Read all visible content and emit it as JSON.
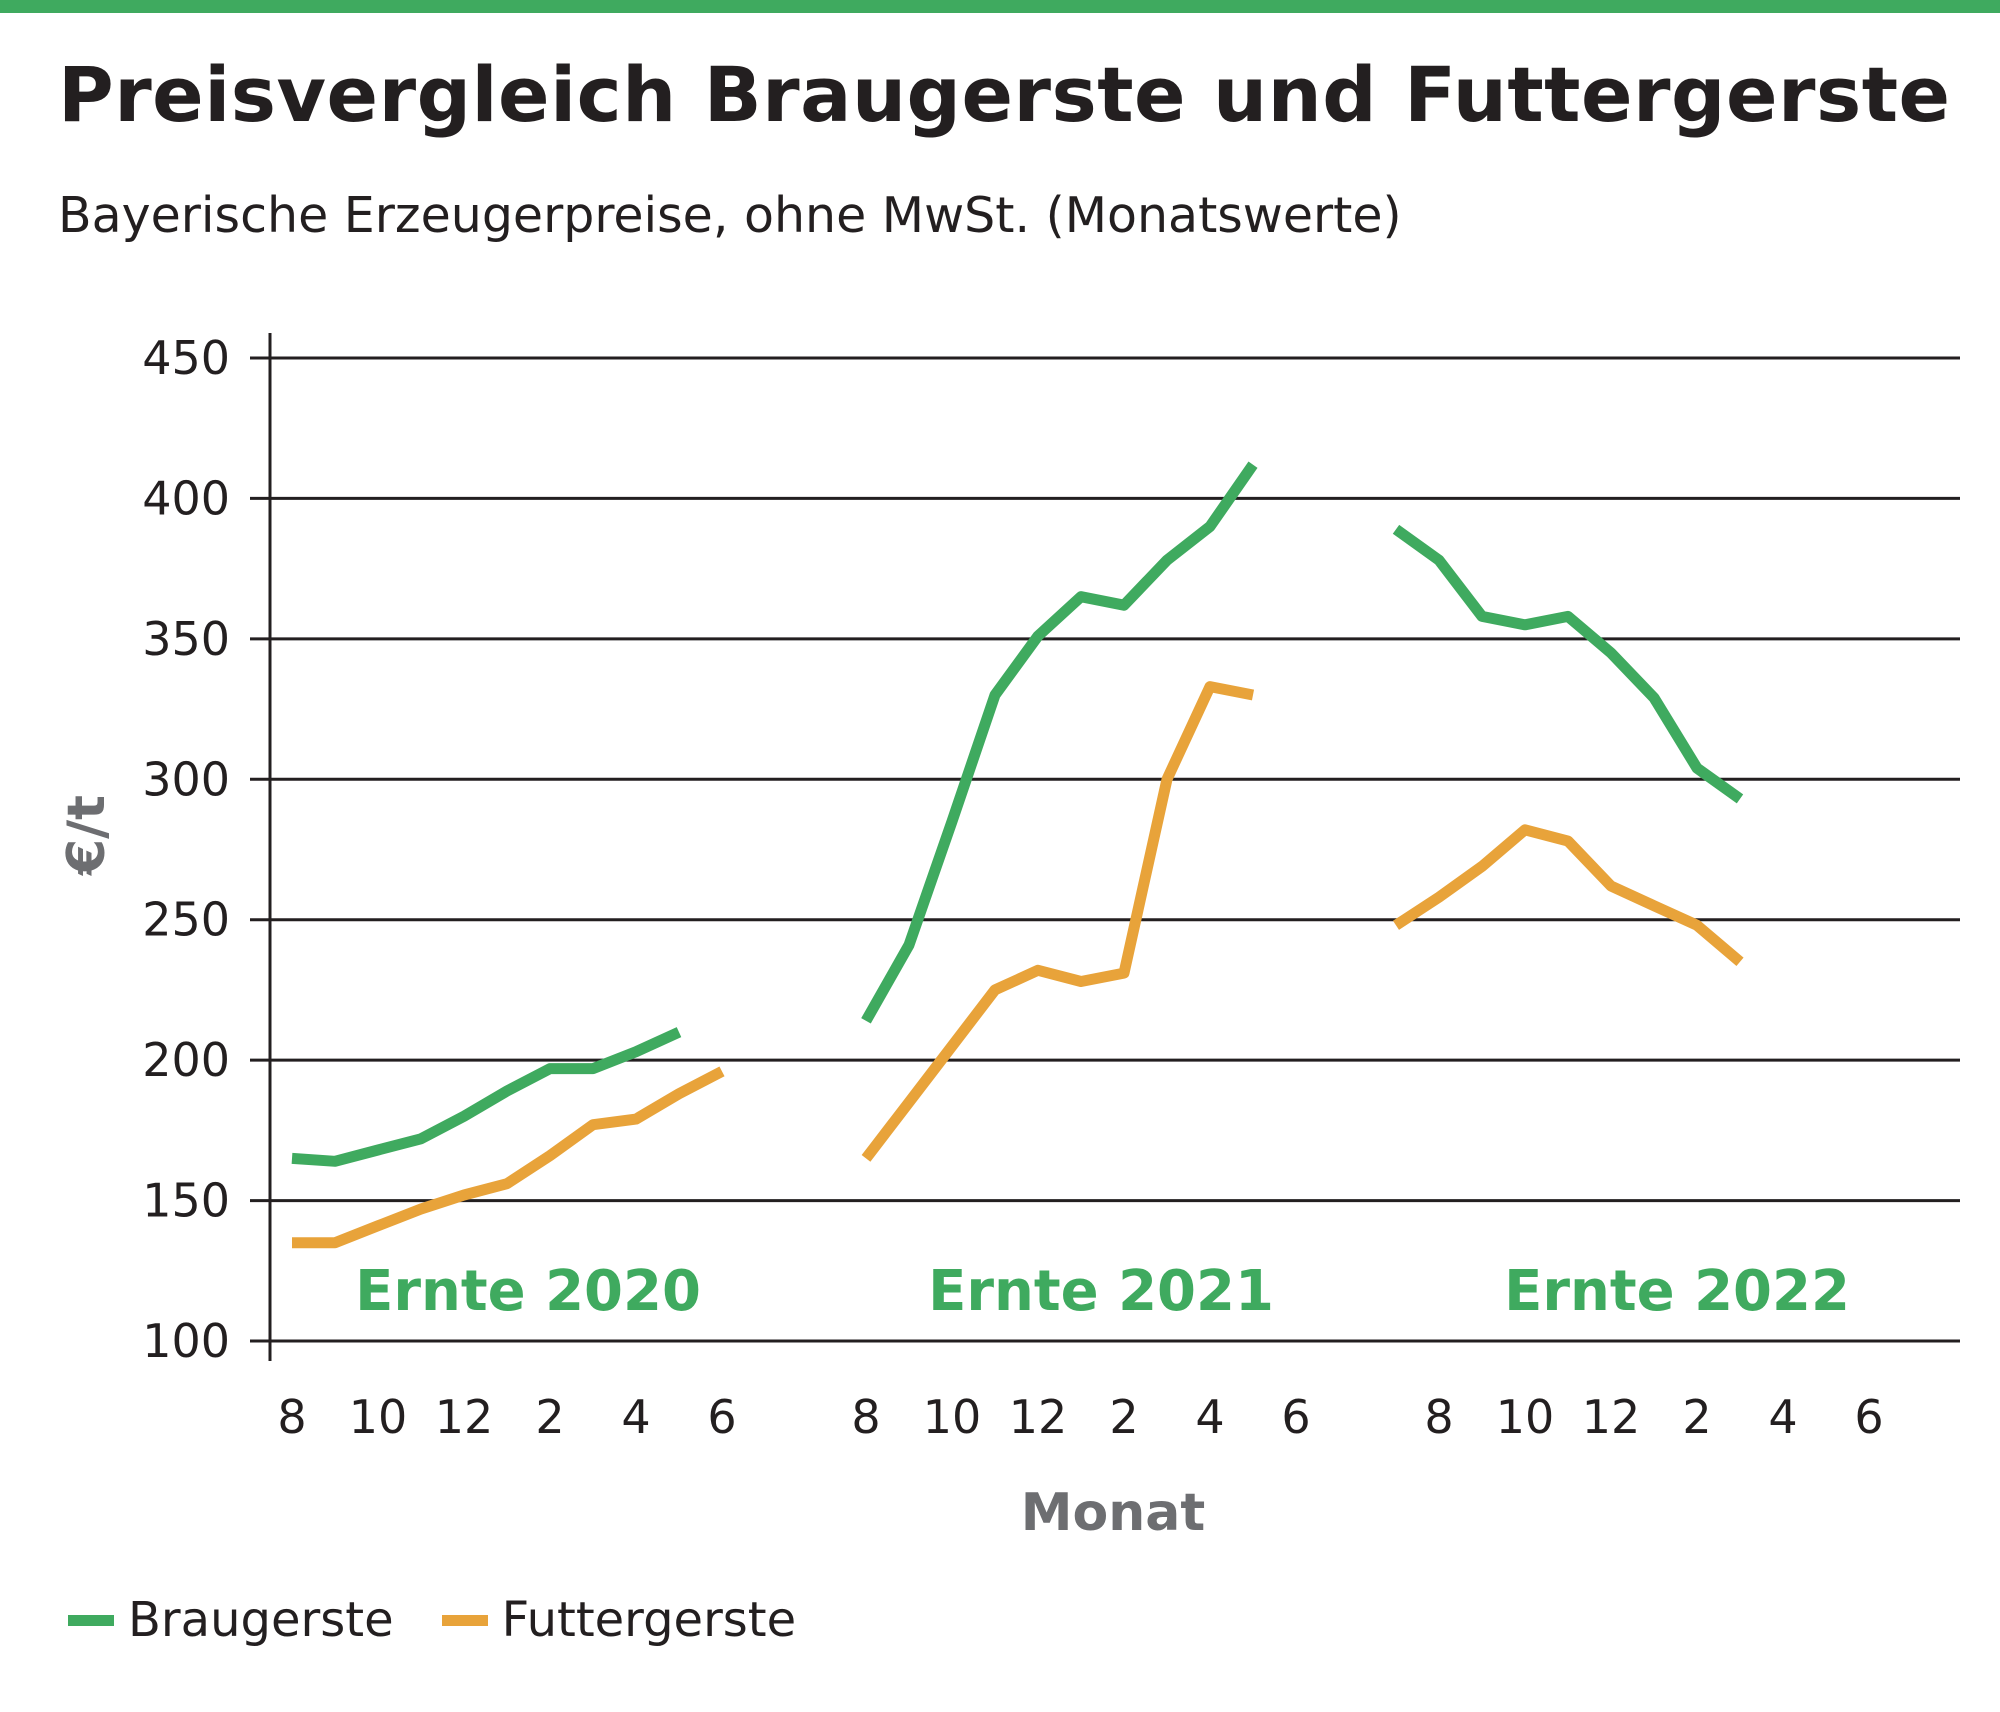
{
  "title": "Preisvergleich Braugerste und Futtergerste",
  "subtitle": "Bayerische Erzeugerpreise, ohne MwSt. (Monatswerte)",
  "colors": {
    "accent_bar": "#3faa5f",
    "braugerste": "#3faa5f",
    "futtergerste": "#e8a33a",
    "grid": "#231f20"
  },
  "chart_data": {
    "type": "line",
    "ylabel": "€/t",
    "xlabel": "Monat",
    "ylim": [
      100,
      450
    ],
    "yticks": [
      100,
      150,
      200,
      250,
      300,
      350,
      400,
      450
    ],
    "grid": true,
    "legend_position": "bottom-left",
    "x_tick_labels": [
      "8",
      "10",
      "12",
      "2",
      "4",
      "6",
      "8",
      "10",
      "12",
      "2",
      "4",
      "6",
      "8",
      "10",
      "12",
      "2",
      "4",
      "6"
    ],
    "harvest_labels": [
      "Ernte 2020",
      "Ernte 2021",
      "Ernte 2022"
    ],
    "series": [
      {
        "name": "Braugerste",
        "segments": [
          {
            "harvest": "Ernte 2020",
            "x": [
              "8",
              "9",
              "10",
              "11",
              "12",
              "1",
              "2",
              "3",
              "4",
              "5",
              "6"
            ],
            "values": [
              165,
              164,
              168,
              172,
              180,
              189,
              197,
              197,
              203,
              210,
              null
            ]
          },
          {
            "harvest": "Ernte 2021",
            "x": [
              "8",
              "9",
              "10",
              "11",
              "12",
              "1",
              "2",
              "3",
              "4",
              "5"
            ],
            "values": [
              214,
              241,
              285,
              330,
              351,
              365,
              362,
              378,
              390,
              412
            ]
          },
          {
            "harvest": "Ernte 2022",
            "x": [
              "7",
              "8",
              "9",
              "10",
              "11",
              "12",
              "1",
              "2",
              "3"
            ],
            "values": [
              389,
              378,
              358,
              355,
              358,
              345,
              329,
              304,
              293
            ]
          }
        ]
      },
      {
        "name": "Futtergerste",
        "segments": [
          {
            "harvest": "Ernte 2020",
            "x": [
              "8",
              "9",
              "10",
              "11",
              "12",
              "1",
              "2",
              "3",
              "4",
              "5",
              "6"
            ],
            "values": [
              135,
              135,
              141,
              147,
              152,
              156,
              166,
              177,
              179,
              188,
              196
            ]
          },
          {
            "harvest": "Ernte 2021",
            "x": [
              "8",
              "9",
              "10",
              "11",
              "12",
              "1",
              "2",
              "3",
              "4",
              "5"
            ],
            "values": [
              165,
              185,
              205,
              225,
              232,
              228,
              231,
              300,
              333,
              330
            ]
          },
          {
            "harvest": "Ernte 2022",
            "x": [
              "7",
              "8",
              "9",
              "10",
              "11",
              "12",
              "1",
              "2",
              "3"
            ],
            "values": [
              248,
              258,
              269,
              282,
              278,
              262,
              255,
              248,
              235
            ]
          }
        ]
      }
    ]
  }
}
